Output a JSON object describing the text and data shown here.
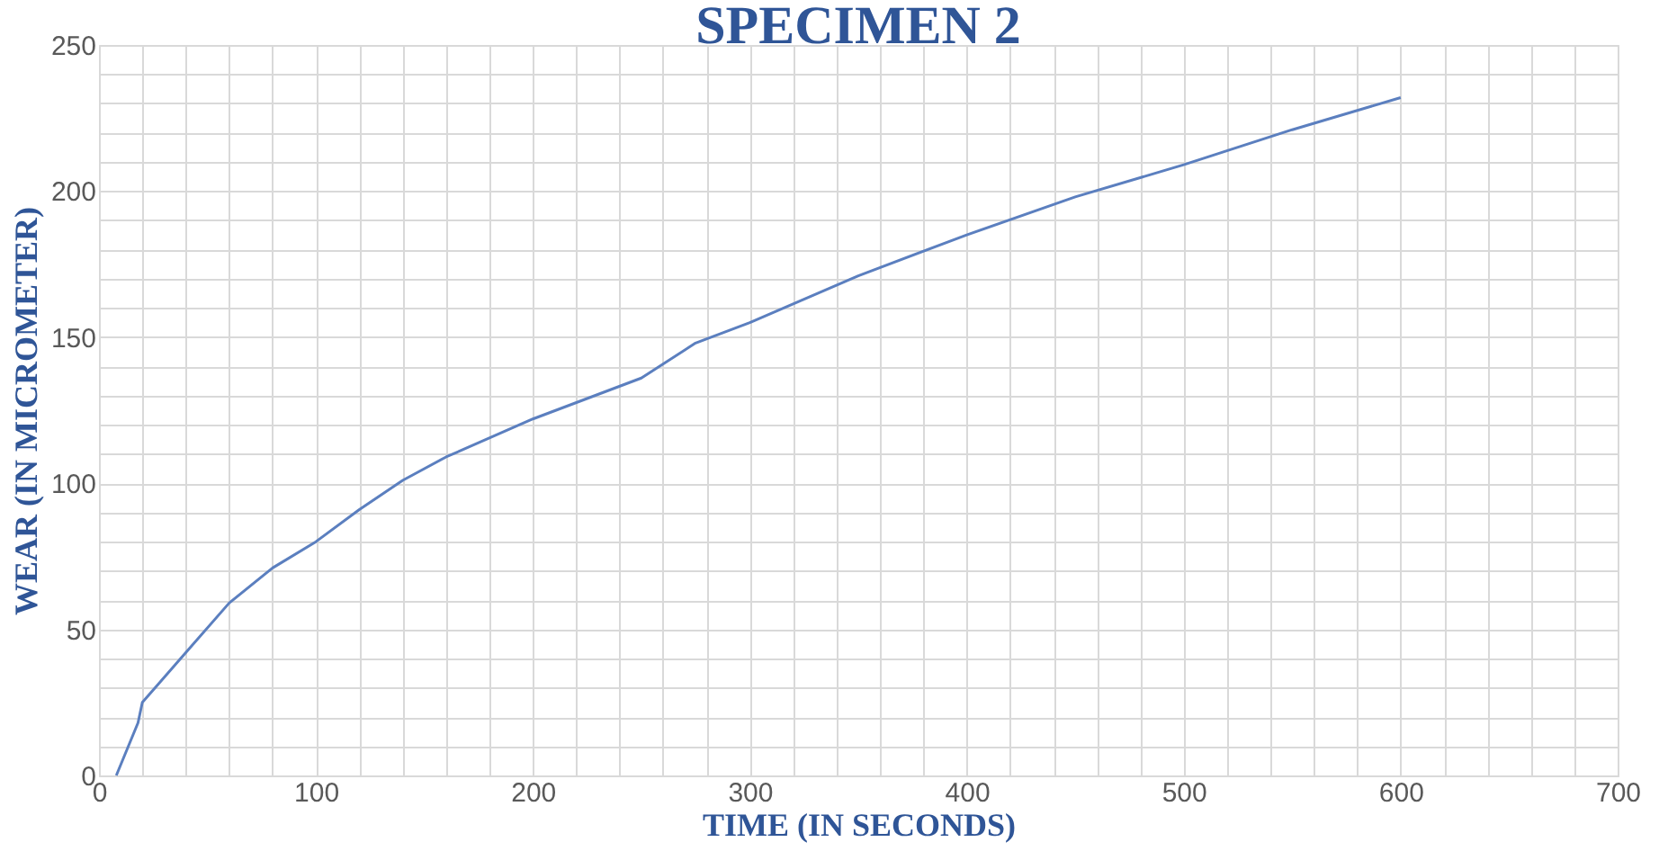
{
  "chart_data": {
    "type": "line",
    "title": "SPECIMEN 2",
    "xlabel": "TIME (IN SECONDS)",
    "ylabel": "WEAR (IN MICROMETER)",
    "series": [
      {
        "color": "#5b7fbf",
        "x": [
          8,
          18,
          20,
          40,
          60,
          80,
          100,
          120,
          140,
          160,
          200,
          250,
          275,
          300,
          350,
          400,
          450,
          500,
          550,
          600
        ],
        "values": [
          0,
          18,
          25,
          42,
          59,
          71,
          80,
          91,
          101,
          109,
          122,
          136,
          148,
          155,
          171,
          185,
          198,
          209,
          221,
          232
        ]
      }
    ],
    "xlim": [
      0,
      700
    ],
    "ylim": [
      0,
      250
    ],
    "xticks": [
      0,
      {
        "value": 20,
        "label": null
      },
      {
        "value": 40,
        "label": null
      },
      {
        "value": 60,
        "label": null
      },
      {
        "value": 80,
        "label": null
      },
      100,
      {
        "value": 120,
        "label": null
      },
      {
        "value": 140,
        "label": null
      },
      {
        "value": 160,
        "label": null
      },
      {
        "value": 180,
        "label": null
      },
      200,
      {
        "value": 220,
        "label": null
      },
      {
        "value": 240,
        "label": null
      },
      {
        "value": 260,
        "label": null
      },
      {
        "value": 280,
        "label": null
      },
      300,
      {
        "value": 320,
        "label": null
      },
      {
        "value": 340,
        "label": null
      },
      {
        "value": 360,
        "label": null
      },
      {
        "value": 380,
        "label": null
      },
      400,
      {
        "value": 420,
        "label": null
      },
      {
        "value": 440,
        "label": null
      },
      {
        "value": 460,
        "label": null
      },
      {
        "value": 480,
        "label": null
      },
      500,
      {
        "value": 520,
        "label": null
      },
      {
        "value": 540,
        "label": null
      },
      {
        "value": 560,
        "label": null
      },
      {
        "value": 580,
        "label": null
      },
      600,
      {
        "value": 620,
        "label": null
      },
      {
        "value": 640,
        "label": null
      },
      {
        "value": 660,
        "label": null
      },
      {
        "value": 680,
        "label": null
      },
      700
    ],
    "yticks": [
      0,
      {
        "value": 10,
        "label": null
      },
      {
        "value": 20,
        "label": null
      },
      {
        "value": 30,
        "label": null
      },
      {
        "value": 40,
        "label": null
      },
      50,
      {
        "value": 60,
        "label": null
      },
      {
        "value": 70,
        "label": null
      },
      {
        "value": 80,
        "label": null
      },
      {
        "value": 90,
        "label": null
      },
      100,
      {
        "value": 110,
        "label": null
      },
      {
        "value": 120,
        "label": null
      },
      {
        "value": 130,
        "label": null
      },
      {
        "value": 140,
        "label": null
      },
      150,
      {
        "value": 160,
        "label": null
      },
      {
        "value": 170,
        "label": null
      },
      {
        "value": 180,
        "label": null
      },
      {
        "value": 190,
        "label": null
      },
      200,
      {
        "value": 210,
        "label": null
      },
      {
        "value": 220,
        "label": null
      },
      {
        "value": 230,
        "label": null
      },
      {
        "value": 240,
        "label": null
      },
      250
    ],
    "grid": true,
    "marker": "none",
    "line_style": "solid"
  }
}
